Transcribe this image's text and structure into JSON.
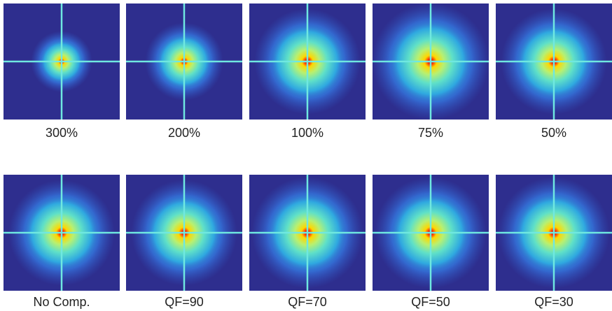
{
  "rows": [
    {
      "panels": [
        {
          "label": "300%"
        },
        {
          "label": "200%"
        },
        {
          "label": "100%"
        },
        {
          "label": "75%"
        },
        {
          "label": "50%"
        }
      ]
    },
    {
      "panels": [
        {
          "label": "No Comp."
        },
        {
          "label": "QF=90"
        },
        {
          "label": "QF=70"
        },
        {
          "label": "QF=50"
        },
        {
          "label": "QF=30"
        }
      ]
    }
  ]
}
